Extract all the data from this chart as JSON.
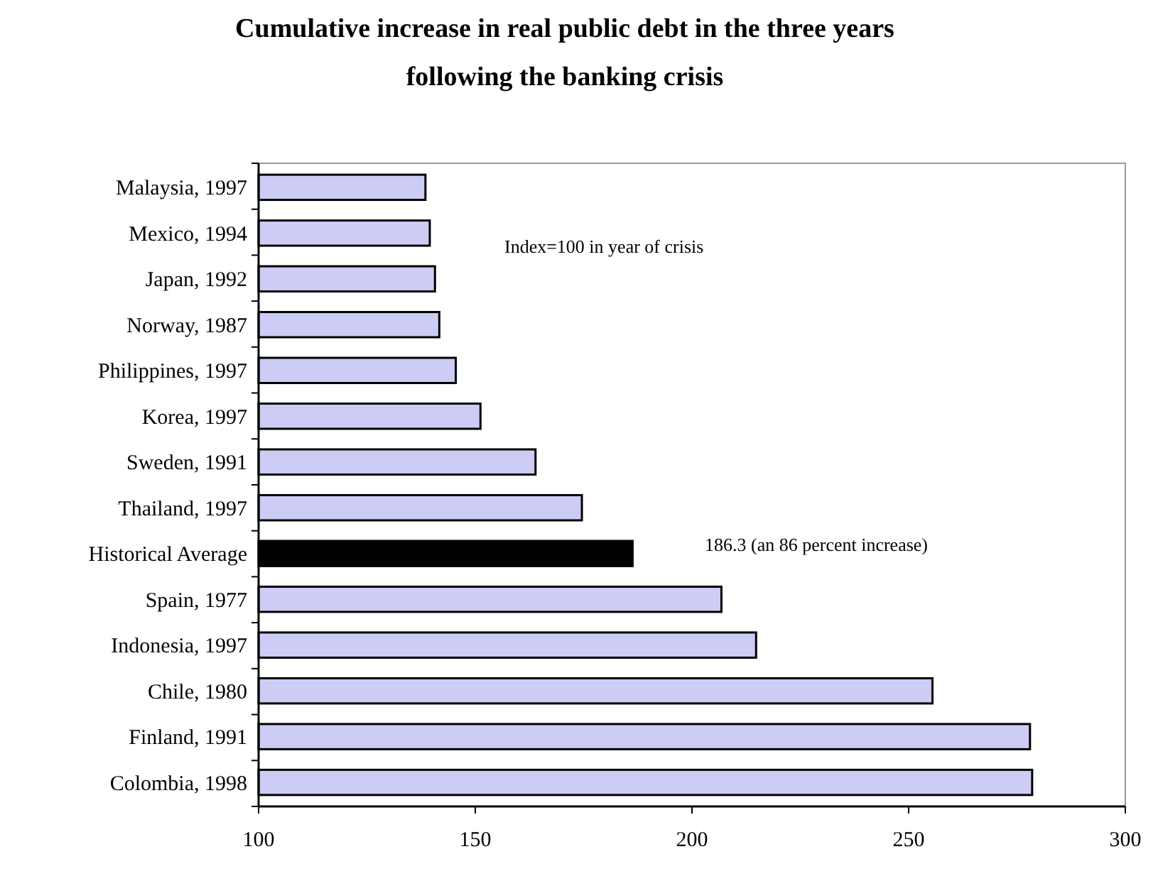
{
  "chart_data": {
    "type": "bar",
    "orientation": "horizontal",
    "title": "Cumulative increase in real public debt in the three years following the banking crisis",
    "categories": [
      "Malaysia, 1997",
      "Mexico, 1994",
      "Japan, 1992",
      "Norway, 1987",
      "Philippines, 1997",
      "Korea, 1997",
      "Sweden, 1991",
      "Thailand, 1997",
      "Historical Average",
      "Spain, 1977",
      "Indonesia, 1997",
      "Chile, 1980",
      "Finland, 1991",
      "Colombia, 1998"
    ],
    "values": [
      138.5,
      139.5,
      140.7,
      141.7,
      145.5,
      151.2,
      163.9,
      174.6,
      186.3,
      206.8,
      214.8,
      255.5,
      278,
      278.5
    ],
    "colors": [
      "#ccccf5",
      "#ccccf5",
      "#ccccf5",
      "#ccccf5",
      "#ccccf5",
      "#ccccf5",
      "#ccccf5",
      "#ccccf5",
      "#000000",
      "#ccccf5",
      "#ccccf5",
      "#ccccf5",
      "#ccccf5",
      "#ccccf5"
    ],
    "xlim": [
      100,
      300
    ],
    "xticks": [
      100,
      150,
      200,
      250,
      300
    ],
    "grid": false,
    "annotations": [
      "Index=100 in year of crisis",
      "186.3 (an 86 percent increase)"
    ]
  }
}
